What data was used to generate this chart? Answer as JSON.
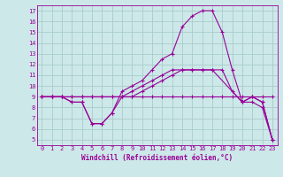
{
  "xlabel": "Windchill (Refroidissement éolien,°C)",
  "background_color": "#cce8e8",
  "grid_color": "#aacccc",
  "line_color": "#990099",
  "xlim": [
    -0.5,
    23.5
  ],
  "ylim": [
    4.5,
    17.5
  ],
  "xticks": [
    0,
    1,
    2,
    3,
    4,
    5,
    6,
    7,
    8,
    9,
    10,
    11,
    12,
    13,
    14,
    15,
    16,
    17,
    18,
    19,
    20,
    21,
    22,
    23
  ],
  "yticks": [
    5,
    6,
    7,
    8,
    9,
    10,
    11,
    12,
    13,
    14,
    15,
    16,
    17
  ],
  "curve1_x": [
    0,
    1,
    2,
    3,
    4,
    5,
    6,
    7,
    8,
    9,
    10,
    11,
    12,
    13,
    14,
    15,
    16,
    17,
    18,
    19,
    20,
    21,
    22,
    23
  ],
  "curve1_y": [
    9.0,
    9.0,
    9.0,
    9.0,
    9.0,
    9.0,
    9.0,
    9.0,
    9.0,
    9.0,
    9.0,
    9.0,
    9.0,
    9.0,
    9.0,
    9.0,
    9.0,
    9.0,
    9.0,
    9.0,
    9.0,
    9.0,
    9.0,
    9.0
  ],
  "curve2_x": [
    0,
    1,
    2,
    3,
    4,
    5,
    6,
    7,
    8,
    9,
    10,
    11,
    12,
    13,
    14,
    15,
    16,
    17,
    20,
    21,
    22,
    23
  ],
  "curve2_y": [
    9.0,
    9.0,
    9.0,
    8.5,
    8.5,
    6.5,
    6.5,
    7.5,
    9.0,
    9.5,
    10.0,
    10.5,
    11.0,
    11.5,
    11.5,
    11.5,
    11.5,
    11.5,
    8.5,
    9.0,
    8.5,
    5.0
  ],
  "curve3_x": [
    0,
    1,
    2,
    3,
    4,
    5,
    6,
    7,
    8,
    9,
    10,
    11,
    12,
    13,
    14,
    15,
    16,
    17,
    18,
    19,
    20,
    21,
    22,
    23
  ],
  "curve3_y": [
    9.0,
    9.0,
    9.0,
    8.5,
    8.5,
    6.5,
    6.5,
    7.5,
    9.5,
    10.0,
    10.5,
    11.5,
    12.5,
    13.0,
    15.5,
    16.5,
    17.0,
    17.0,
    15.0,
    11.5,
    8.5,
    9.0,
    8.5,
    5.0
  ],
  "curve4_x": [
    0,
    1,
    2,
    3,
    4,
    5,
    6,
    7,
    8,
    9,
    10,
    11,
    12,
    13,
    14,
    15,
    16,
    17,
    18,
    19,
    20,
    21,
    22,
    23
  ],
  "curve4_y": [
    9.0,
    9.0,
    9.0,
    9.0,
    9.0,
    9.0,
    9.0,
    9.0,
    9.0,
    9.0,
    9.5,
    10.0,
    10.5,
    11.0,
    11.5,
    11.5,
    11.5,
    11.5,
    11.5,
    9.5,
    8.5,
    8.5,
    8.0,
    5.0
  ],
  "xlabel_fontsize": 5.5,
  "tick_fontsize": 5.0,
  "lw": 0.8,
  "ms": 2.5
}
